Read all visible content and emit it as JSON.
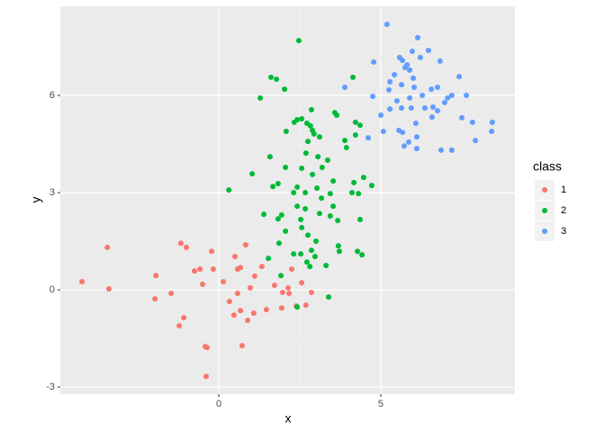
{
  "chart_data": {
    "type": "scatter",
    "x_label": "x",
    "y_label": "y",
    "legend_title": "class",
    "legend_position": "right",
    "grid": true,
    "xlim": [
      -4.89,
      9.14
    ],
    "ylim": [
      -3.22,
      8.75
    ],
    "xticks": [
      0,
      5
    ],
    "yticks": [
      -3,
      0,
      3,
      6
    ],
    "series": [
      {
        "name": "1",
        "color": "#F8766D",
        "x": [
          -4.22,
          -3.44,
          -3.39,
          -1.94,
          -1.97,
          -1.47,
          -1.17,
          -1.0,
          -1.22,
          -1.08,
          -0.75,
          -0.58,
          -0.5,
          -0.36,
          -0.42,
          -0.22,
          -0.17,
          -0.39,
          0.14,
          0.33,
          0.5,
          0.58,
          0.67,
          0.83,
          0.47,
          0.58,
          0.67,
          0.72,
          0.89,
          0.97,
          1.08,
          1.11,
          1.33,
          1.47,
          1.72,
          1.94,
          2.14,
          2.25,
          2.17,
          2.39,
          2.69,
          2.86,
          2.56,
          1.97
        ],
        "values": [
          0.25,
          1.31,
          0.03,
          0.44,
          -0.28,
          -0.11,
          1.44,
          1.31,
          -1.11,
          -0.86,
          0.58,
          0.64,
          0.17,
          -1.78,
          -1.75,
          1.19,
          0.64,
          -2.67,
          0.25,
          -0.36,
          1.03,
          0.64,
          0.69,
          1.39,
          -0.78,
          -0.11,
          -0.64,
          -1.72,
          -0.94,
          0.06,
          -0.72,
          0.42,
          0.72,
          -0.61,
          0.14,
          -0.56,
          0.06,
          0.64,
          -0.11,
          -0.5,
          -0.47,
          -0.08,
          0.22,
          -0.08
        ]
      },
      {
        "name": "2",
        "color": "#00BA38",
        "x": [
          0.31,
          1.03,
          1.28,
          1.39,
          1.61,
          1.78,
          1.83,
          1.94,
          1.92,
          2.03,
          2.08,
          1.58,
          1.67,
          1.83,
          2.06,
          2.06,
          1.86,
          1.53,
          2.47,
          2.33,
          2.42,
          2.56,
          2.72,
          2.86,
          2.83,
          2.94,
          2.75,
          2.69,
          2.56,
          2.42,
          2.31,
          2.42,
          2.53,
          2.56,
          2.67,
          2.75,
          2.86,
          2.72,
          2.81,
          2.31,
          2.53,
          2.42,
          2.89,
          3.06,
          3.19,
          3.03,
          3.17,
          3.11,
          3.0,
          2.97,
          3.31,
          3.44,
          3.53,
          3.67,
          3.58,
          3.64,
          3.89,
          3.94,
          3.39,
          3.69,
          3.72,
          4.11,
          4.17,
          4.14,
          4.22,
          4.36,
          4.22,
          4.28,
          4.42,
          4.36,
          4.31,
          4.47,
          4.72,
          3.36,
          3.11,
          2.89,
          3.53,
          2.67,
          3.44
        ],
        "values": [
          3.08,
          3.58,
          5.92,
          2.33,
          6.56,
          6.5,
          2.19,
          2.31,
          0.44,
          6.19,
          4.89,
          4.11,
          3.19,
          3.28,
          3.78,
          1.81,
          1.44,
          0.97,
          7.69,
          5.17,
          5.25,
          5.28,
          5.14,
          5.56,
          5.06,
          4.81,
          4.58,
          4.22,
          3.75,
          3.17,
          3.0,
          2.58,
          2.17,
          1.92,
          2.5,
          1.69,
          1.22,
          0.86,
          0.72,
          1.11,
          1.11,
          -0.53,
          3.56,
          4.11,
          3.78,
          3.14,
          2.83,
          2.36,
          1.5,
          1.03,
          0.75,
          2.97,
          2.58,
          2.14,
          5.47,
          5.39,
          4.61,
          4.39,
          -0.22,
          1.36,
          1.19,
          3.0,
          3.31,
          6.56,
          5.17,
          5.08,
          4.78,
          1.19,
          1.08,
          2.17,
          2.97,
          3.47,
          3.22,
          4.0,
          4.72,
          4.92,
          3.36,
          3.0,
          2.28
        ]
      },
      {
        "name": "3",
        "color": "#619CFF",
        "x": [
          5.19,
          4.78,
          3.89,
          4.61,
          4.75,
          5.0,
          5.08,
          5.25,
          5.28,
          5.28,
          5.42,
          5.5,
          5.56,
          5.58,
          5.67,
          5.64,
          5.67,
          5.72,
          5.75,
          5.81,
          5.89,
          5.89,
          5.94,
          5.97,
          6.0,
          6.03,
          6.08,
          6.11,
          6.11,
          6.14,
          6.22,
          6.28,
          6.36,
          6.47,
          6.56,
          6.58,
          6.61,
          6.75,
          6.75,
          6.83,
          6.86,
          6.97,
          7.06,
          7.19,
          7.19,
          7.42,
          7.5,
          7.64,
          7.83,
          7.92,
          8.44,
          8.42,
          5.86,
          5.64
        ],
        "values": [
          8.19,
          7.03,
          6.25,
          4.69,
          5.97,
          5.39,
          4.89,
          6.17,
          6.42,
          5.58,
          6.64,
          5.83,
          4.92,
          7.17,
          7.08,
          6.33,
          4.86,
          4.44,
          6.86,
          6.94,
          6.78,
          5.92,
          5.61,
          7.36,
          6.53,
          6.25,
          5.14,
          4.72,
          4.36,
          7.78,
          7.17,
          6.0,
          5.61,
          7.39,
          6.19,
          5.33,
          5.64,
          5.53,
          6.25,
          7.06,
          4.31,
          5.78,
          5.92,
          6.0,
          4.31,
          6.58,
          5.31,
          6.0,
          5.17,
          4.61,
          5.17,
          4.89,
          4.56,
          5.61
        ]
      }
    ]
  }
}
